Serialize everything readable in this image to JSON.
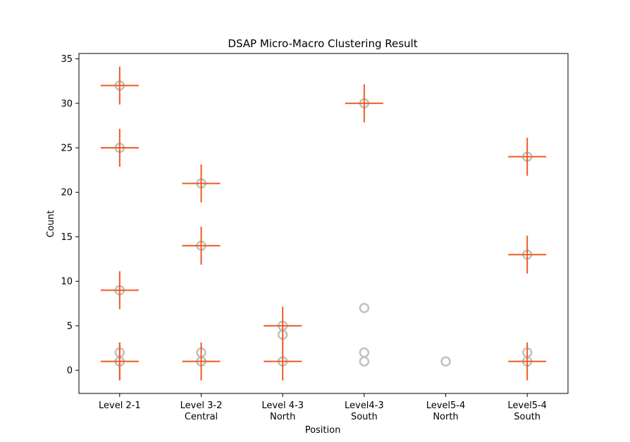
{
  "chart_data": {
    "type": "scatter",
    "title": "DSAP Micro-Macro Clustering Result",
    "xlabel": "Position",
    "ylabel": "Count",
    "categories": [
      [
        "Level 2-1"
      ],
      [
        "Level 3-2",
        "Central"
      ],
      [
        "Level 4-3",
        "North"
      ],
      [
        "Level4-3",
        "South"
      ],
      [
        "Level5-4",
        "North"
      ],
      [
        "Level5-4",
        "South"
      ]
    ],
    "ylim": [
      -2.6,
      35.6
    ],
    "yticks": [
      0,
      5,
      10,
      15,
      20,
      25,
      30,
      35
    ],
    "grid": false,
    "colors": {
      "observed": "#c0c0c0",
      "cluster": "#f05a1e"
    },
    "series": [
      {
        "marker": "circle",
        "points": [
          {
            "x": 0,
            "y": 32
          },
          {
            "x": 0,
            "y": 25
          },
          {
            "x": 0,
            "y": 9
          },
          {
            "x": 0,
            "y": 2
          },
          {
            "x": 0,
            "y": 1
          },
          {
            "x": 0,
            "y": 1
          },
          {
            "x": 1,
            "y": 21
          },
          {
            "x": 1,
            "y": 14
          },
          {
            "x": 1,
            "y": 2
          },
          {
            "x": 1,
            "y": 1
          },
          {
            "x": 1,
            "y": 1
          },
          {
            "x": 2,
            "y": 5
          },
          {
            "x": 2,
            "y": 4
          },
          {
            "x": 2,
            "y": 1
          },
          {
            "x": 3,
            "y": 30
          },
          {
            "x": 3,
            "y": 7
          },
          {
            "x": 3,
            "y": 2
          },
          {
            "x": 3,
            "y": 1
          },
          {
            "x": 4,
            "y": 1
          },
          {
            "x": 5,
            "y": 24
          },
          {
            "x": 5,
            "y": 13
          },
          {
            "x": 5,
            "y": 2
          },
          {
            "x": 5,
            "y": 1
          }
        ]
      },
      {
        "marker": "plus",
        "points": [
          {
            "x": 0,
            "y": 32
          },
          {
            "x": 0,
            "y": 25
          },
          {
            "x": 0,
            "y": 9
          },
          {
            "x": 0,
            "y": 1
          },
          {
            "x": 0,
            "y": 1
          },
          {
            "x": 1,
            "y": 21
          },
          {
            "x": 1,
            "y": 14
          },
          {
            "x": 1,
            "y": 1
          },
          {
            "x": 1,
            "y": 1
          },
          {
            "x": 2,
            "y": 5
          },
          {
            "x": 2,
            "y": 1
          },
          {
            "x": 3,
            "y": 30
          },
          {
            "x": 5,
            "y": 24
          },
          {
            "x": 5,
            "y": 13
          },
          {
            "x": 5,
            "y": 1
          }
        ]
      }
    ]
  }
}
